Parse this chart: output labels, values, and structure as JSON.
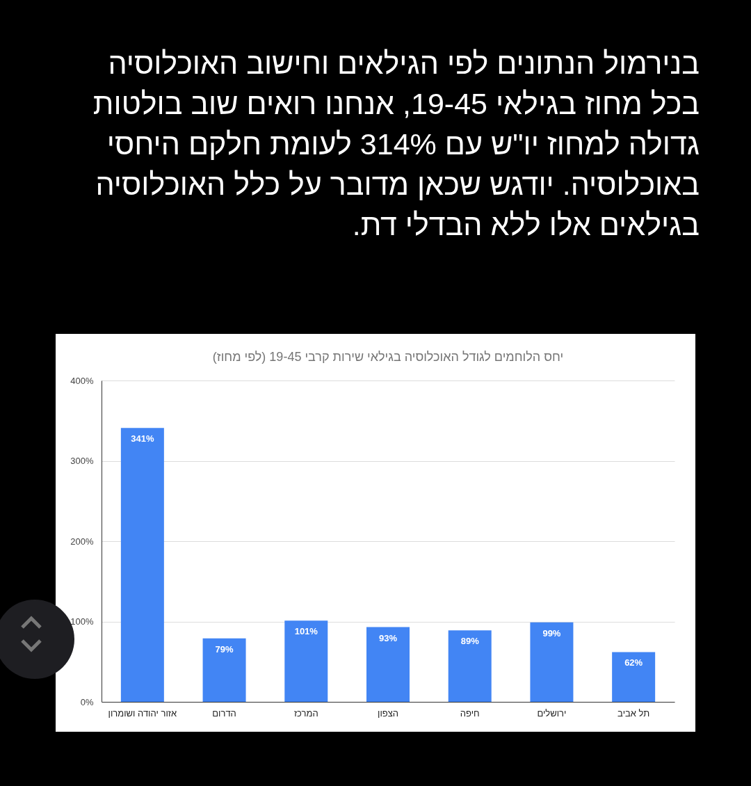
{
  "chart_data": {
    "type": "bar",
    "title": "יחס הלוחמים לגודל האוכלוסיה בגילאי שירות קרבי 19-45 (לפי מחוז)",
    "annotations": [
      "בנירמול הנתונים לפי הגילאים וחישוב האוכלוסיה בכל מחוז בגילאי 19-45, אנחנו רואים שוב בולטות גדולה למחוז יו\"ש עם 314% לעומת חלקם היחסי באוכלוסיה. יודגש שכאן מדובר על כלל האוכלוסיה בגילאים אלו ללא הבדלי דת."
    ],
    "categories": [
      "אזור יהודה ושומרון",
      "הדרום",
      "המרכז",
      "הצפון",
      "חיפה",
      "ירושלים",
      "תל אביב"
    ],
    "values": [
      341,
      79,
      101,
      93,
      89,
      99,
      62
    ],
    "value_labels": [
      "341%",
      "79%",
      "101%",
      "93%",
      "89%",
      "99%",
      "62%"
    ],
    "color": "#4285f4",
    "ylim": [
      0,
      400
    ],
    "yticks": [
      {
        "value": 0,
        "label": "0%"
      },
      {
        "value": 100,
        "label": "100%"
      },
      {
        "value": 200,
        "label": "200%"
      },
      {
        "value": 300,
        "label": "300%"
      },
      {
        "value": 400,
        "label": "400%"
      }
    ],
    "grid": "y"
  }
}
